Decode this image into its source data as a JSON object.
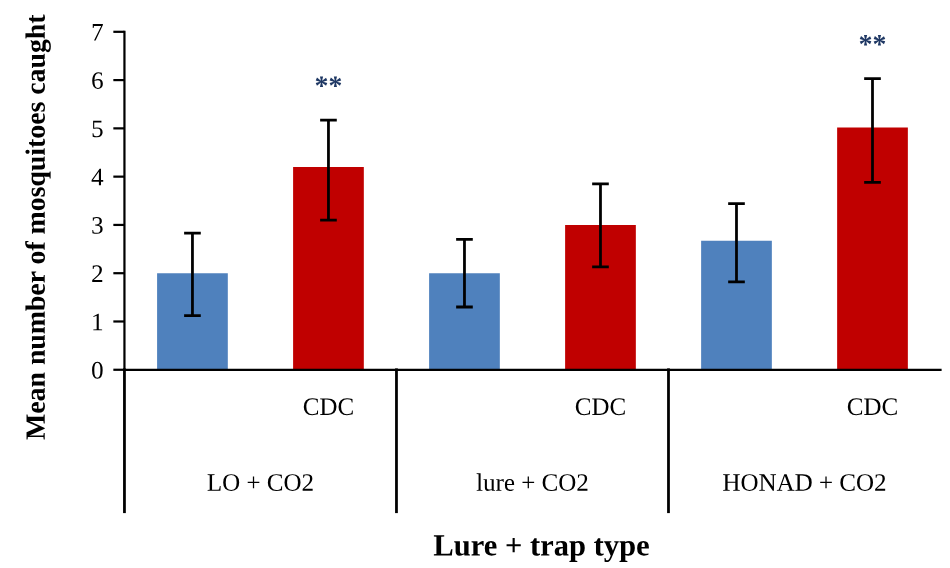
{
  "chart_data": {
    "type": "bar",
    "categories": [
      null,
      "CDC",
      null,
      "CDC",
      null,
      "CDC"
    ],
    "values": [
      2.0,
      4.2,
      2.0,
      3.0,
      2.67,
      5.02
    ],
    "colors": [
      "#4f81bd",
      "#c00000",
      "#4f81bd",
      "#c00000",
      "#4f81bd",
      "#c00000"
    ],
    "errors": [
      [
        1.12,
        2.83
      ],
      [
        3.1,
        5.17
      ],
      [
        1.3,
        2.7
      ],
      [
        2.13,
        3.85
      ],
      [
        1.82,
        3.44
      ],
      [
        3.88,
        6.03
      ]
    ],
    "ylim": [
      0,
      7
    ],
    "yticks": [
      0,
      1,
      2,
      3,
      4,
      5,
      6,
      7
    ],
    "grid": false,
    "legend": false,
    "xlabel": "Lure + trap type",
    "ylabel": "Mean number of mosquitoes caught",
    "annotations": [
      "**",
      "**",
      "LO + CO2",
      "lure + CO2",
      "HONAD + CO2"
    ]
  }
}
